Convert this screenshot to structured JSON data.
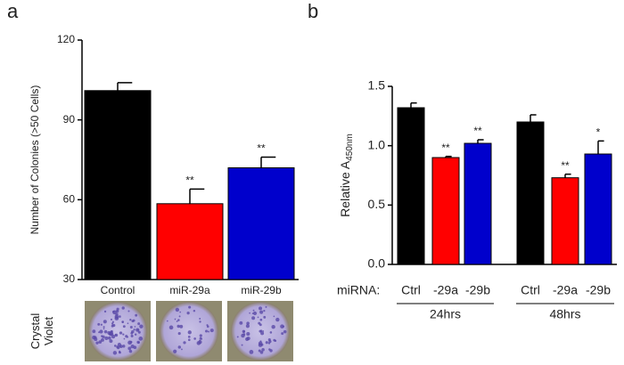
{
  "chart_data": [
    {
      "type": "bar",
      "panel": "a",
      "ylabel": "Number of Colonies (>50 Cells)",
      "categories": [
        "Control",
        "miR-29a",
        "miR-29b"
      ],
      "values": [
        101,
        58.5,
        72
      ],
      "errors": [
        3,
        5.5,
        4
      ],
      "colors": [
        "#000000",
        "#ff0000",
        "#0000cc"
      ],
      "annotations": [
        null,
        "**",
        "**"
      ],
      "ylim": [
        30,
        120
      ],
      "yticks": [
        30,
        60,
        90,
        120
      ],
      "image_label": "Crystal Violet"
    },
    {
      "type": "bar",
      "panel": "b",
      "ylabel": "Relative A",
      "ylabel_sub": "450nm",
      "category_prefix": "miRNA:",
      "categories": [
        "Ctrl",
        "-29a",
        "-29b",
        "Ctrl",
        "-29a",
        "-29b"
      ],
      "values": [
        1.32,
        0.9,
        1.02,
        1.2,
        0.73,
        0.93
      ],
      "errors": [
        0.04,
        0.01,
        0.03,
        0.06,
        0.03,
        0.11
      ],
      "colors": [
        "#000000",
        "#ff0000",
        "#0000cc",
        "#000000",
        "#ff0000",
        "#0000cc"
      ],
      "annotations": [
        null,
        "**",
        "**",
        null,
        "**",
        "*"
      ],
      "groups": [
        "24hrs",
        "48hrs"
      ],
      "ylim": [
        0,
        1.5
      ],
      "yticks": [
        {
          "value": 0,
          "label": "0.0"
        },
        0.5,
        {
          "value": 1,
          "label": "1.0"
        },
        1.5
      ]
    }
  ]
}
